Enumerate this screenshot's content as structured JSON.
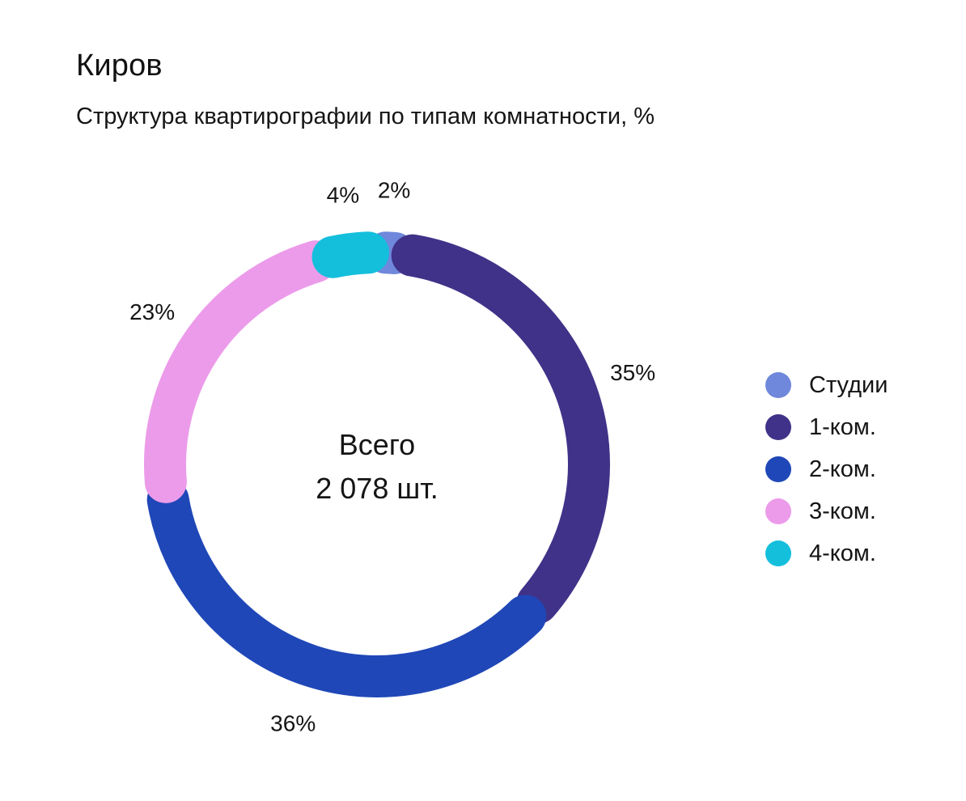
{
  "title": "Киров",
  "subtitle": "Структура квартирографии по типам комнатности, %",
  "center": {
    "label": "Всего",
    "value": "2 078 шт."
  },
  "chart_data": {
    "type": "pie",
    "variant": "donut",
    "title": "Киров",
    "subtitle": "Структура квартирографии по типам комнатности, %",
    "unit": "%",
    "total": "2 078 шт.",
    "legend_position": "right",
    "slices": [
      {
        "name": "Студии",
        "value": 2,
        "label": "2%",
        "color": "#6F88DB"
      },
      {
        "name": "1-ком.",
        "value": 35,
        "label": "35%",
        "color": "#403288"
      },
      {
        "name": "2-ком.",
        "value": 36,
        "label": "36%",
        "color": "#1F47B7"
      },
      {
        "name": "3-ком.",
        "value": 23,
        "label": "23%",
        "color": "#EC9BEA"
      },
      {
        "name": "4-ком.",
        "value": 4,
        "label": "4%",
        "color": "#14BFDC"
      }
    ]
  }
}
